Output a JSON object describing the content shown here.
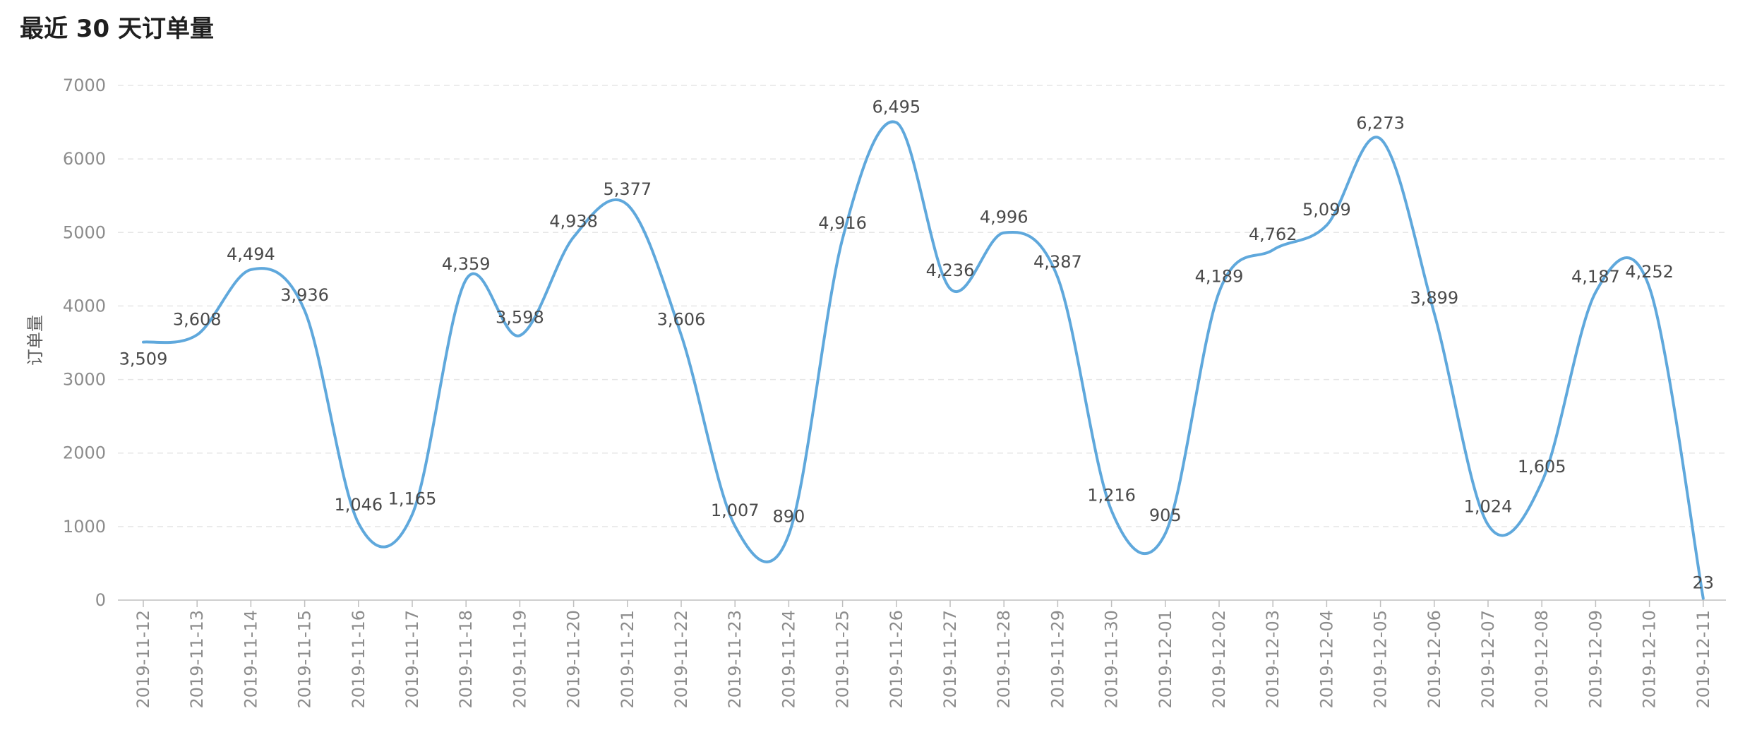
{
  "chart_data": {
    "type": "line",
    "title": "最近 30 天订单量",
    "ylabel": "订单量",
    "xlabel": "",
    "ylim": [
      0,
      7000
    ],
    "yticks": [
      0,
      1000,
      2000,
      3000,
      4000,
      5000,
      6000,
      7000
    ],
    "grid": true,
    "smooth": true,
    "line_color": "#5fa8dc",
    "x": [
      "2019-11-12",
      "2019-11-13",
      "2019-11-14",
      "2019-11-15",
      "2019-11-16",
      "2019-11-17",
      "2019-11-18",
      "2019-11-19",
      "2019-11-20",
      "2019-11-21",
      "2019-11-22",
      "2019-11-23",
      "2019-11-24",
      "2019-11-25",
      "2019-11-26",
      "2019-11-27",
      "2019-11-28",
      "2019-11-29",
      "2019-11-30",
      "2019-12-01",
      "2019-12-02",
      "2019-12-03",
      "2019-12-04",
      "2019-12-05",
      "2019-12-06",
      "2019-12-07",
      "2019-12-08",
      "2019-12-09",
      "2019-12-10",
      "2019-12-11"
    ],
    "values": [
      3509,
      3608,
      4494,
      3936,
      1046,
      1165,
      4359,
      3598,
      4938,
      5377,
      3606,
      1007,
      890,
      4916,
      6495,
      4236,
      4996,
      4387,
      1216,
      905,
      4189,
      4762,
      5099,
      6273,
      3899,
      1024,
      1605,
      4187,
      4252,
      23
    ],
    "value_labels": [
      "3,509",
      "3,608",
      "4,494",
      "3,936",
      "1,046",
      "1,165",
      "4,359",
      "3,598",
      "4,938",
      "5,377",
      "3,606",
      "1,007",
      "890",
      "4,916",
      "6,495",
      "4,236",
      "4,996",
      "4,387",
      "1,216",
      "905",
      "4,189",
      "4,762",
      "5,099",
      "6,273",
      "3,899",
      "1,024",
      "1,605",
      "4,187",
      "4,252",
      "23"
    ]
  }
}
